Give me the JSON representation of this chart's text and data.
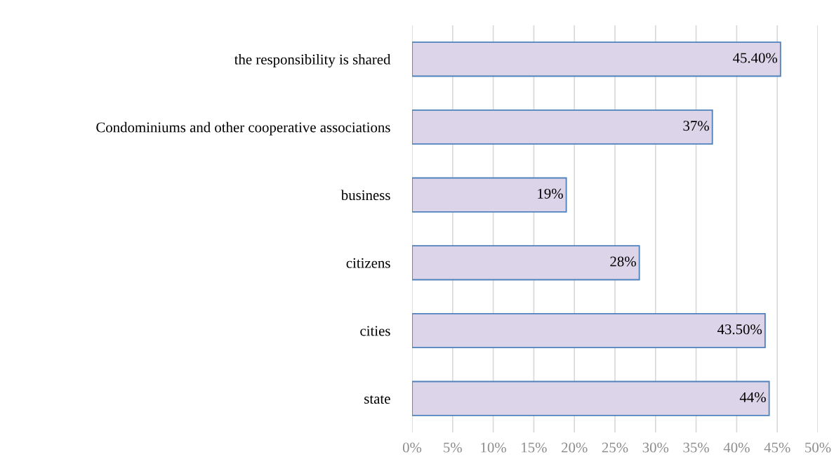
{
  "chart_data": {
    "type": "bar",
    "orientation": "horizontal",
    "categories": [
      "the responsibility is shared",
      "Condominiums and other cooperative associations",
      "business",
      "citizens",
      "cities",
      "state"
    ],
    "values": [
      45.4,
      37,
      19,
      28,
      43.5,
      44
    ],
    "value_labels": [
      "45.40%",
      "37%",
      "19%",
      "28%",
      "43.50%",
      "44%"
    ],
    "color": "#dcd4e8",
    "xlim": [
      0,
      50
    ],
    "xticks": [
      {
        "value": 0,
        "label": "0%"
      },
      {
        "value": 5,
        "label": "5%"
      },
      {
        "value": 10,
        "label": "10%"
      },
      {
        "value": 15,
        "label": "15%"
      },
      {
        "value": 20,
        "label": "20%"
      },
      {
        "value": 25,
        "label": "25%"
      },
      {
        "value": 30,
        "label": "30%"
      },
      {
        "value": 35,
        "label": "35%"
      },
      {
        "value": 40,
        "label": "40%"
      },
      {
        "value": 45,
        "label": "45%"
      },
      {
        "value": 50,
        "label": "50%"
      }
    ],
    "grid": "x",
    "legend": false
  }
}
